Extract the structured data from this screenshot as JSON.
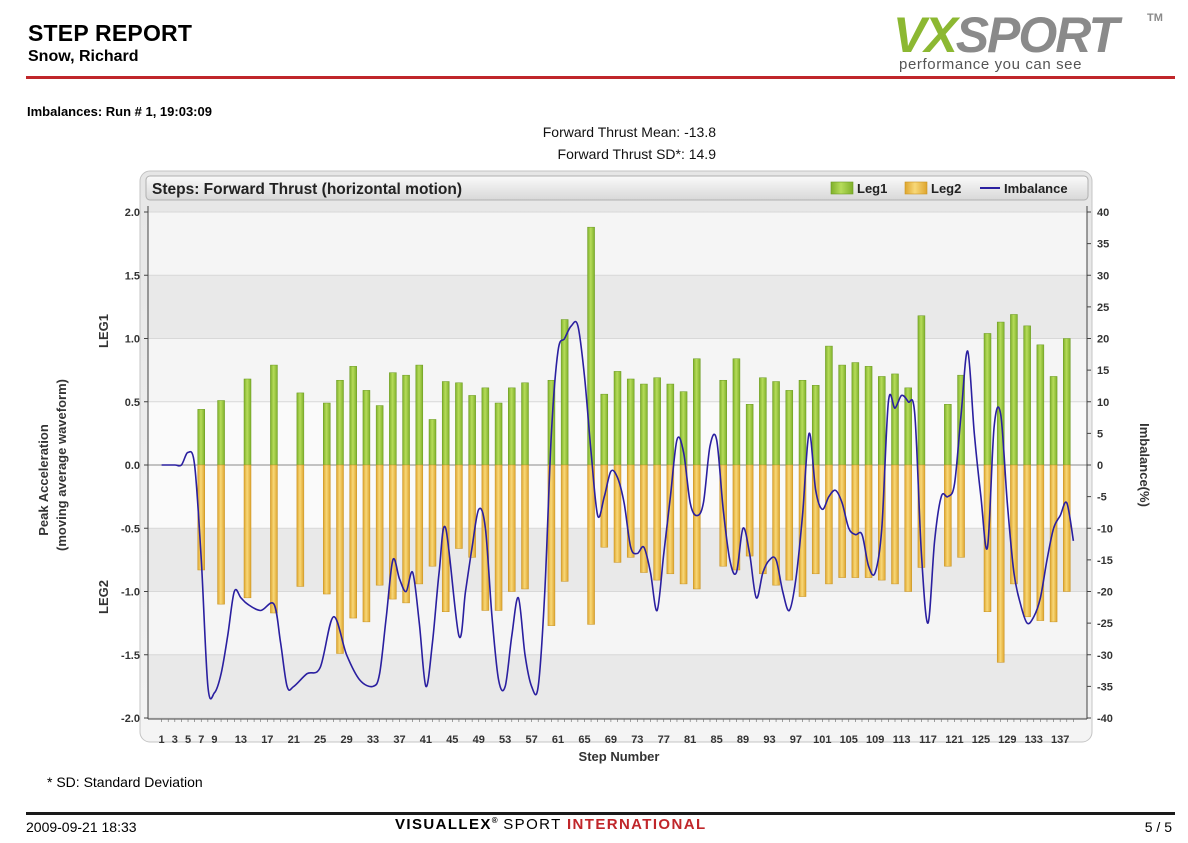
{
  "header": {
    "title": "STEP REPORT",
    "athlete": "Snow, Richard",
    "logo": {
      "vx": "VX",
      "sport": "SPORT",
      "tm": "TM",
      "tagline": "performance you can see"
    }
  },
  "section": {
    "heading": "Imbalances: Run # 1, 19:03:09"
  },
  "stats": {
    "mean": "Forward Thrust Mean: -13.8",
    "sd": "Forward Thrust SD*: 14.9"
  },
  "chart_data": {
    "type": "bar",
    "title": "Steps: Forward Thrust (horizontal motion)",
    "xlabel": "Step Number",
    "ylabel": "Peak Acceleration",
    "ylabel_sub": "(moving average waveform)",
    "ylabel_top": "LEG1",
    "ylabel_bottom": "LEG2",
    "y2label": "Imbalance(%)",
    "ylim": [
      -2.0,
      2.0
    ],
    "y2lim": [
      -40,
      40
    ],
    "xlim": [
      0,
      140
    ],
    "grid": true,
    "legend_position": "top-right",
    "yticks": [
      "2.0",
      "1.5",
      "1.0",
      "0.5",
      "0.0",
      "-0.5",
      "-1.0",
      "-1.5",
      "-2.0"
    ],
    "y2ticks": [
      "40",
      "35",
      "30",
      "25",
      "20",
      "15",
      "10",
      "5",
      "0",
      "-5",
      "-10",
      "-15",
      "-20",
      "-25",
      "-30",
      "-35",
      "-40"
    ],
    "xticks": [
      "1",
      "3",
      "5",
      "7",
      "9",
      "13",
      "17",
      "21",
      "25",
      "29",
      "33",
      "37",
      "41",
      "45",
      "49",
      "53",
      "57",
      "61",
      "65",
      "69",
      "73",
      "77",
      "81",
      "85",
      "89",
      "93",
      "97",
      "101",
      "105",
      "109",
      "113",
      "117",
      "121",
      "125",
      "129",
      "133",
      "137"
    ],
    "colors": {
      "leg1": "#9ccc3c",
      "leg2": "#f0c44c",
      "imbalance": "#2a1fa0"
    },
    "series": [
      {
        "name": "Leg1",
        "type": "bar",
        "x": [
          7,
          10,
          14,
          18,
          22,
          26,
          28,
          30,
          32,
          34,
          36,
          38,
          40,
          42,
          44,
          46,
          48,
          50,
          52,
          54,
          56,
          60,
          62,
          66,
          68,
          70,
          72,
          74,
          76,
          78,
          80,
          82,
          86,
          88,
          90,
          92,
          94,
          96,
          98,
          100,
          102,
          104,
          106,
          108,
          110,
          112,
          114,
          116,
          120,
          122,
          126,
          128,
          130,
          132,
          134,
          136,
          138
        ],
        "values": [
          0.44,
          0.51,
          0.68,
          0.79,
          0.57,
          0.49,
          0.67,
          0.78,
          0.59,
          0.47,
          0.73,
          0.71,
          0.79,
          0.36,
          0.66,
          0.65,
          0.55,
          0.61,
          0.49,
          0.61,
          0.65,
          0.67,
          1.15,
          1.88,
          0.56,
          0.74,
          0.68,
          0.64,
          0.69,
          0.64,
          0.58,
          0.84,
          0.67,
          0.84,
          0.48,
          0.69,
          0.66,
          0.59,
          0.67,
          0.63,
          0.94,
          0.79,
          0.81,
          0.78,
          0.7,
          0.72,
          0.61,
          1.18,
          0.48,
          0.71,
          1.04,
          1.13,
          1.19,
          1.1,
          0.95,
          0.7,
          1.0
        ]
      },
      {
        "name": "Leg2",
        "type": "bar",
        "x": [
          7,
          10,
          14,
          18,
          22,
          26,
          28,
          30,
          32,
          34,
          36,
          38,
          40,
          42,
          44,
          46,
          48,
          50,
          52,
          54,
          56,
          60,
          62,
          66,
          68,
          70,
          72,
          74,
          76,
          78,
          80,
          82,
          86,
          88,
          90,
          92,
          94,
          96,
          98,
          100,
          102,
          104,
          106,
          108,
          110,
          112,
          114,
          116,
          120,
          122,
          126,
          128,
          130,
          132,
          134,
          136,
          138
        ],
        "values": [
          -0.83,
          -1.1,
          -1.05,
          -1.17,
          -0.96,
          -1.02,
          -1.49,
          -1.21,
          -1.24,
          -0.95,
          -1.06,
          -1.09,
          -0.94,
          -0.8,
          -1.16,
          -0.66,
          -0.73,
          -1.15,
          -1.15,
          -1.0,
          -0.98,
          -1.27,
          -0.92,
          -1.26,
          -0.65,
          -0.77,
          -0.73,
          -0.85,
          -0.91,
          -0.86,
          -0.94,
          -0.98,
          -0.8,
          -0.83,
          -0.72,
          -0.86,
          -0.95,
          -0.91,
          -1.04,
          -0.86,
          -0.94,
          -0.89,
          -0.89,
          -0.89,
          -0.91,
          -0.94,
          -1.0,
          -0.81,
          -0.8,
          -0.73,
          -1.16,
          -1.56,
          -0.94,
          -1.2,
          -1.23,
          -1.24,
          -1.0
        ]
      },
      {
        "name": "Imbalance",
        "type": "line",
        "x": [
          1,
          3,
          4,
          5,
          6,
          7,
          8,
          9,
          10,
          11,
          12,
          13,
          14,
          16,
          18,
          19,
          20,
          21,
          23,
          25,
          27,
          29,
          31,
          33,
          34,
          35,
          36,
          37,
          38,
          39,
          40,
          41,
          42,
          43,
          44,
          46,
          47,
          48,
          49,
          50,
          51,
          52,
          53,
          54,
          55,
          56,
          57,
          58,
          59,
          60,
          61,
          62,
          63,
          64,
          65,
          66,
          67,
          68,
          69,
          70,
          71,
          72,
          73,
          74,
          75,
          76,
          77,
          78,
          79,
          80,
          81,
          82,
          83,
          84,
          85,
          86,
          87,
          88,
          89,
          90,
          91,
          92,
          93,
          94,
          95,
          96,
          97,
          98,
          99,
          100,
          101,
          102,
          103,
          104,
          105,
          106,
          107,
          108,
          109,
          110,
          111,
          112,
          113,
          114,
          115,
          116,
          117,
          118,
          119,
          120,
          121,
          122,
          123,
          124,
          125,
          126,
          127,
          128,
          129,
          130,
          131,
          132,
          133,
          134,
          135,
          136,
          137,
          138,
          139
        ],
        "values": [
          0,
          0,
          0,
          2,
          0,
          -15,
          -35,
          -36,
          -33,
          -27,
          -20,
          -21,
          -22,
          -23,
          -22,
          -28,
          -35,
          -35,
          -33,
          -32,
          -24,
          -30,
          -34,
          -35,
          -33,
          -24,
          -15,
          -18,
          -20,
          -17,
          -25,
          -35,
          -28,
          -17,
          -10,
          -27,
          -20,
          -13,
          -7,
          -10,
          -24,
          -34,
          -35,
          -27,
          -21,
          -30,
          -35,
          -35,
          -20,
          5,
          18,
          20,
          22,
          22,
          14,
          2,
          -8,
          -5,
          -1,
          -2,
          -6,
          -13,
          -14,
          -13,
          -17,
          -23,
          -14,
          -5,
          4,
          2,
          -6,
          -8,
          -6,
          3,
          4,
          -7,
          -15,
          -17,
          -10,
          -14,
          -21,
          -17,
          -15,
          -15,
          -20,
          -23,
          -18,
          -8,
          5,
          -4,
          -7,
          -5,
          -4,
          -6,
          -10,
          -11,
          -11,
          -16,
          -17,
          -10,
          10,
          9,
          11,
          10,
          8,
          -14,
          -25,
          -12,
          -5,
          -5,
          -3,
          8,
          18,
          5,
          -5,
          -13,
          6,
          8,
          -6,
          -17,
          -22,
          -25,
          -24,
          -21,
          -15,
          -10,
          -8,
          -6,
          -12
        ]
      }
    ]
  },
  "footer": {
    "footnote": "* SD: Standard Deviation",
    "date": "2009-09-21 18:33",
    "brand_visuallex": "VISUALLEX",
    "brand_reg": "®",
    "brand_sport": " SPORT ",
    "brand_intl": "INTERNATIONAL",
    "page": "5 / 5"
  }
}
